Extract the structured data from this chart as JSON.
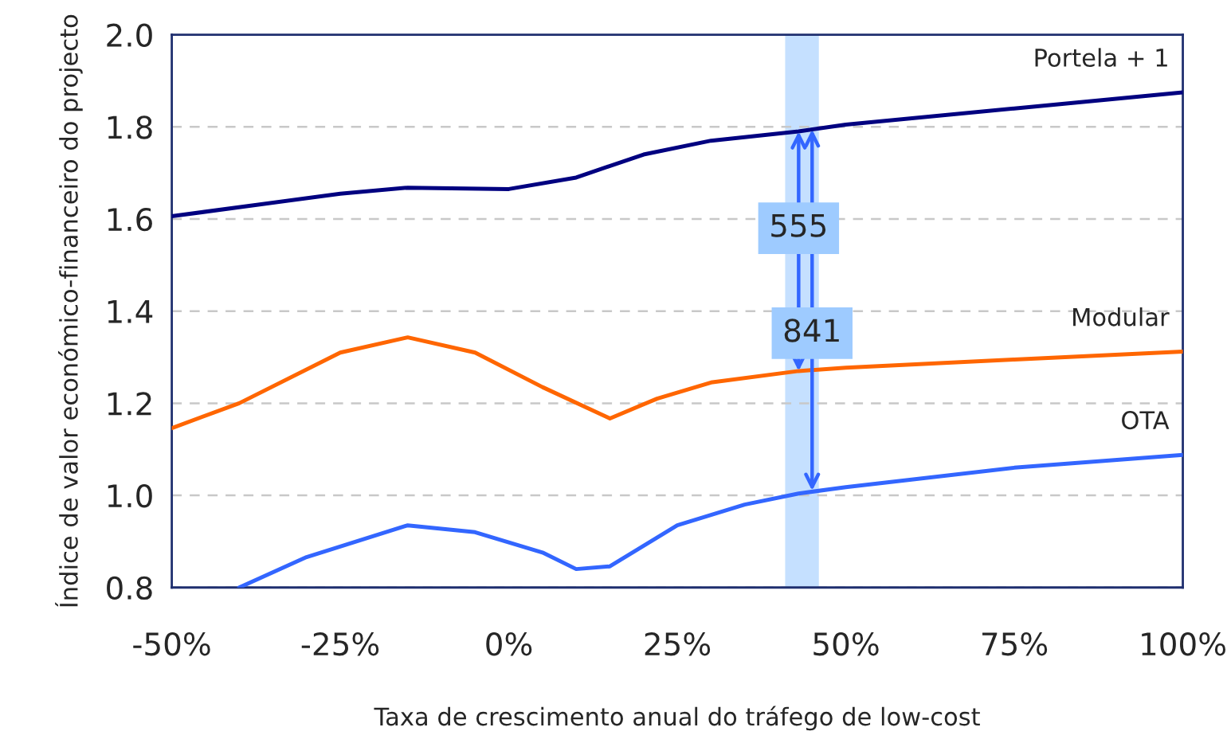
{
  "chart_data": {
    "type": "line",
    "xlabel": "Taxa de crescimento anual do tráfego de low-cost",
    "ylabel": "Índice de valor económico-financeiro do projecto",
    "series": [
      {
        "name": "Portela + 1",
        "color": "#000080",
        "x": [
          -50,
          -25,
          -15,
          0,
          10,
          20,
          30,
          43,
          50,
          75,
          100
        ],
        "values": [
          1.606,
          1.655,
          1.668,
          1.665,
          1.69,
          1.74,
          1.77,
          1.79,
          1.805,
          1.84,
          1.875
        ]
      },
      {
        "name": "Modular",
        "color": "#ff6600",
        "x": [
          -50,
          -40,
          -25,
          -15,
          -5,
          5,
          15,
          22,
          30,
          43,
          50,
          75,
          100
        ],
        "values": [
          1.146,
          1.2,
          1.31,
          1.343,
          1.31,
          1.235,
          1.167,
          1.21,
          1.245,
          1.27,
          1.277,
          1.295,
          1.312
        ]
      },
      {
        "name": "OTA",
        "color": "#3366ff",
        "x": [
          -40,
          -30,
          -15,
          -5,
          5,
          10,
          15,
          25,
          35,
          43,
          50,
          75,
          100
        ],
        "values": [
          0.8,
          0.866,
          0.935,
          0.92,
          0.876,
          0.84,
          0.846,
          0.935,
          0.98,
          1.004,
          1.018,
          1.06,
          1.088
        ]
      }
    ],
    "xlim": [
      -50,
      100
    ],
    "xticks": [
      {
        "value": -50,
        "label": "-50%"
      },
      {
        "value": -25,
        "label": "-25%"
      },
      {
        "value": 0,
        "label": "0%"
      },
      {
        "value": 25,
        "label": "25%"
      },
      {
        "value": 50,
        "label": "50%"
      },
      {
        "value": 75,
        "label": "75%"
      },
      {
        "value": 100,
        "label": "100%"
      }
    ],
    "ylim": [
      0.8,
      2.0
    ],
    "yticks": [
      0.8,
      {
        "value": 1.0,
        "label": "1.0"
      },
      1.2,
      1.4,
      1.6,
      1.8,
      {
        "value": 2.0,
        "label": "2.0"
      }
    ],
    "grid": "y",
    "legend": false,
    "marker": "none",
    "line_style": "solid",
    "bands": [
      {
        "axis": "x",
        "from": 41,
        "to": 46,
        "color": "#9ecbff"
      }
    ],
    "annotations": [
      {
        "text": "555",
        "x": 43,
        "y": 1.27
      },
      {
        "text": "841",
        "x": 45,
        "y": 1.01
      }
    ]
  }
}
